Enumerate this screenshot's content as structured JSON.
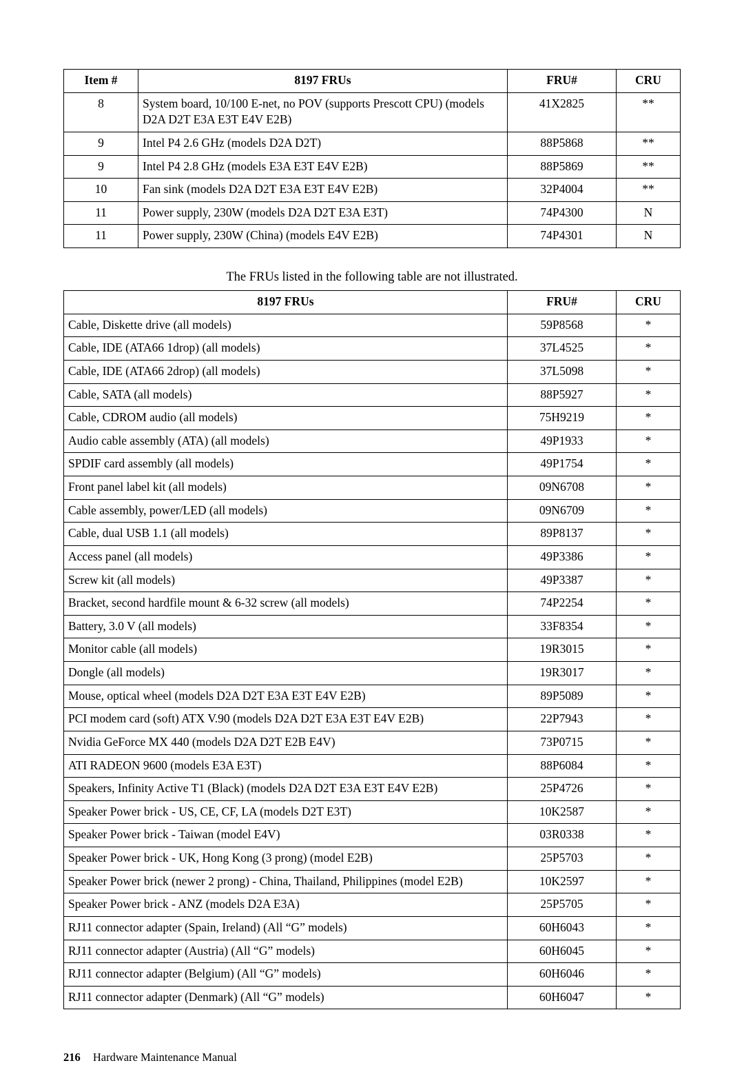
{
  "table1": {
    "headers": [
      "Item #",
      "8197 FRUs",
      "FRU#",
      "CRU"
    ],
    "rows": [
      [
        "8",
        "System board, 10/100 E-net, no POV (supports Prescott CPU) (models D2A D2T E3A E3T E4V E2B)",
        "41X2825",
        "**"
      ],
      [
        "9",
        "Intel P4 2.6 GHz (models D2A D2T)",
        "88P5868",
        "**"
      ],
      [
        "9",
        "Intel P4 2.8 GHz (models E3A E3T E4V E2B)",
        "88P5869",
        "**"
      ],
      [
        "10",
        "Fan sink (models D2A D2T E3A E3T E4V E2B)",
        "32P4004",
        "**"
      ],
      [
        "11",
        "Power supply, 230W (models D2A D2T E3A E3T)",
        "74P4300",
        "N"
      ],
      [
        "11",
        "Power supply, 230W (China) (models E4V E2B)",
        "74P4301",
        "N"
      ]
    ]
  },
  "caption": "The FRUs listed in the following table are not illustrated.",
  "table2": {
    "headers": [
      "8197 FRUs",
      "FRU#",
      "CRU"
    ],
    "rows": [
      [
        "Cable, Diskette drive (all models)",
        "59P8568",
        "*"
      ],
      [
        "Cable, IDE (ATA66 1drop) (all models)",
        "37L4525",
        "*"
      ],
      [
        "Cable, IDE (ATA66 2drop) (all models)",
        "37L5098",
        "*"
      ],
      [
        "Cable, SATA (all models)",
        "88P5927",
        "*"
      ],
      [
        "Cable, CDROM audio (all models)",
        "75H9219",
        "*"
      ],
      [
        "Audio cable assembly (ATA) (all models)",
        "49P1933",
        "*"
      ],
      [
        "SPDIF card assembly (all models)",
        "49P1754",
        "*"
      ],
      [
        "Front panel label kit (all models)",
        "09N6708",
        "*"
      ],
      [
        "Cable assembly, power/LED (all models)",
        "09N6709",
        "*"
      ],
      [
        "Cable, dual USB 1.1 (all models)",
        "89P8137",
        "*"
      ],
      [
        "Access panel (all models)",
        "49P3386",
        "*"
      ],
      [
        "Screw kit (all models)",
        "49P3387",
        "*"
      ],
      [
        "Bracket, second hardfile mount & 6-32 screw (all models)",
        "74P2254",
        "*"
      ],
      [
        "Battery, 3.0 V (all models)",
        "33F8354",
        "*"
      ],
      [
        "Monitor cable (all models)",
        "19R3015",
        "*"
      ],
      [
        "Dongle (all models)",
        "19R3017",
        "*"
      ],
      [
        "Mouse, optical wheel (models D2A D2T E3A E3T E4V E2B)",
        "89P5089",
        "*"
      ],
      [
        "PCI modem card (soft) ATX V.90 (models D2A D2T E3A E3T E4V E2B)",
        "22P7943",
        "*"
      ],
      [
        "Nvidia GeForce MX 440 (models D2A D2T E2B E4V)",
        "73P0715",
        "*"
      ],
      [
        "ATI RADEON 9600 (models E3A E3T)",
        "88P6084",
        "*"
      ],
      [
        "Speakers, Infinity Active T1 (Black) (models D2A D2T E3A E3T E4V E2B)",
        "25P4726",
        "*"
      ],
      [
        "Speaker Power brick - US, CE, CF, LA (models D2T E3T)",
        "10K2587",
        "*"
      ],
      [
        "Speaker Power brick - Taiwan (model E4V)",
        "03R0338",
        "*"
      ],
      [
        "Speaker Power brick - UK, Hong Kong (3 prong) (model E2B)",
        "25P5703",
        "*"
      ],
      [
        "Speaker Power brick (newer 2 prong) - China, Thailand, Philippines (model E2B)",
        "10K2597",
        "*"
      ],
      [
        "Speaker Power brick - ANZ (models D2A E3A)",
        "25P5705",
        "*"
      ],
      [
        "RJ11 connector adapter (Spain, Ireland) (All “G” models)",
        "60H6043",
        "*"
      ],
      [
        "RJ11 connector adapter (Austria) (All “G” models)",
        "60H6045",
        "*"
      ],
      [
        "RJ11 connector adapter (Belgium) (All “G” models)",
        "60H6046",
        "*"
      ],
      [
        "RJ11 connector adapter (Denmark) (All “G” models)",
        "60H6047",
        "*"
      ]
    ]
  },
  "footer": {
    "page": "216",
    "title": "Hardware Maintenance Manual"
  }
}
